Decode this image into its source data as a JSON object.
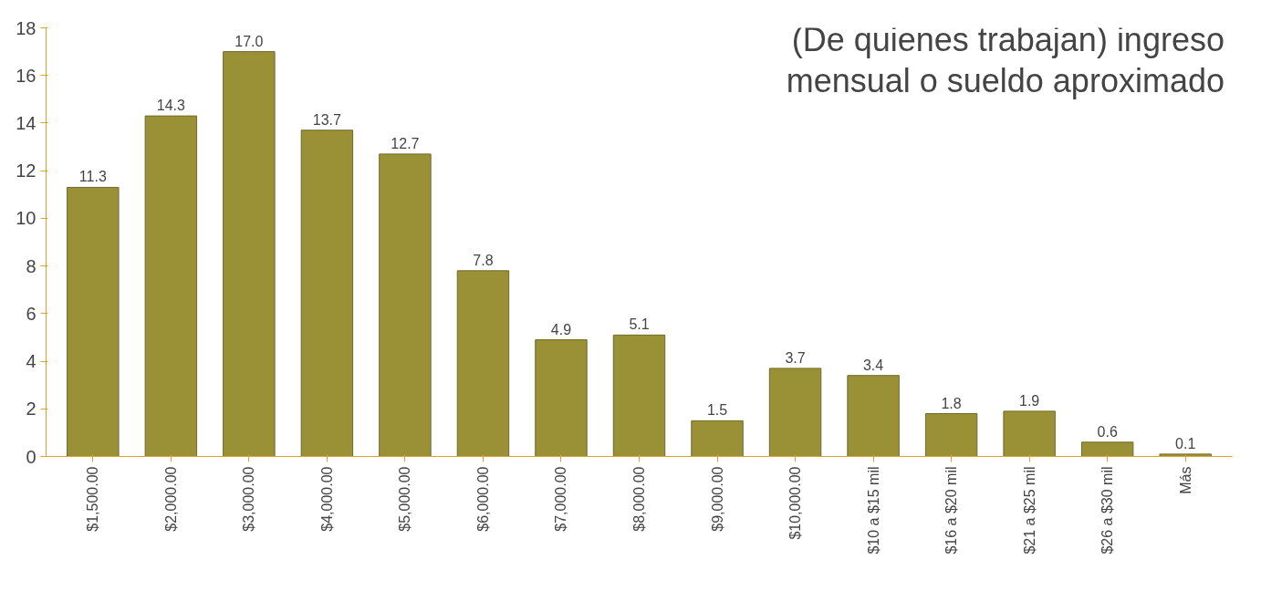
{
  "chart_data": {
    "type": "bar",
    "title": "(De quienes trabajan) ingreso\nmensual o sueldo aproximado",
    "categories": [
      "$1,500.00",
      "$2,000.00",
      "$3,000.00",
      "$4,000.00",
      "$5,000.00",
      "$6,000.00",
      "$7,000.00",
      "$8,000.00",
      "$9,000.00",
      "$10,000.00",
      "$10 a $15 mil",
      "$16 a $20 mil",
      "$21 a $25 mil",
      "$26 a $30 mil",
      "Más"
    ],
    "values": [
      11.3,
      14.3,
      17.0,
      13.7,
      12.7,
      7.8,
      4.9,
      5.1,
      1.5,
      3.7,
      3.4,
      1.8,
      1.9,
      0.6,
      0.1
    ],
    "value_labels": [
      "11.3",
      "14.3",
      "17.0",
      "13.7",
      "12.7",
      "7.8",
      "4.9",
      "5.1",
      "1.5",
      "3.7",
      "3.4",
      "1.8",
      "1.9",
      "0.6",
      "0.1"
    ],
    "color": "#9a9035",
    "ylim": [
      0,
      18
    ],
    "yticks": [
      0,
      2,
      4,
      6,
      8,
      10,
      12,
      14,
      16,
      18
    ],
    "grid": false
  }
}
